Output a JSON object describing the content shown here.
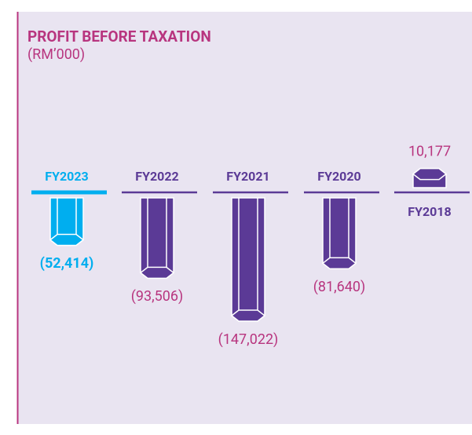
{
  "chart_data": {
    "type": "bar",
    "title": "PROFIT BEFORE TAXATION",
    "subtitle": "(RM’000)",
    "categories": [
      "FY2023",
      "FY2022",
      "FY2021",
      "FY2020",
      "FY2018"
    ],
    "values": [
      -52414,
      -93506,
      -147022,
      -81640,
      10177
    ],
    "value_labels": [
      "(52,414)",
      "(93,506)",
      "(147,022)",
      "(81,640)",
      "10,177"
    ],
    "colors": [
      "#00aeef",
      "#5b3a96",
      "#5b3a96",
      "#5b3a96",
      "#5b3a96"
    ],
    "label_colors": [
      "#00aeef",
      "#b8357f",
      "#b8357f",
      "#b8357f",
      "#b8357f"
    ],
    "title_color": "#b8357f"
  }
}
